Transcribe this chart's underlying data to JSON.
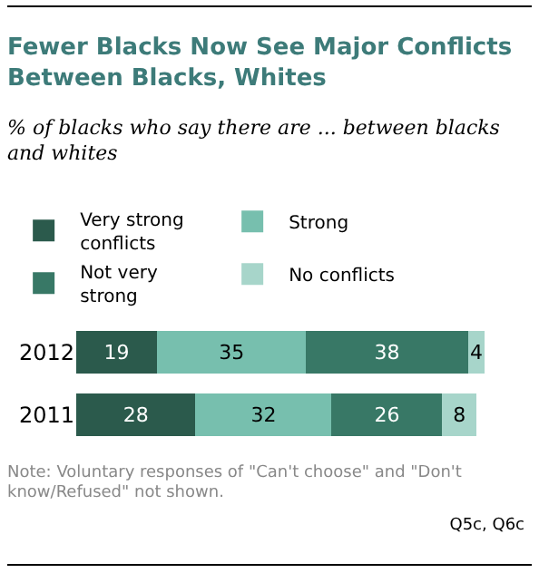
{
  "chart_data": {
    "type": "bar",
    "orientation": "horizontal",
    "stacked": true,
    "title": "Fewer Blacks Now See Major Conflicts Between Blacks, Whites",
    "subtitle": "% of blacks who say there are ... between blacks and whites",
    "categories": [
      "2012",
      "2011"
    ],
    "series": [
      {
        "name": "Very strong conflicts",
        "color": "#2b5a4c",
        "values": [
          19,
          28
        ]
      },
      {
        "name": "Strong",
        "color": "#77bfae",
        "values": [
          35,
          32
        ]
      },
      {
        "name": "Not very strong",
        "color": "#387866",
        "values": [
          38,
          26
        ]
      },
      {
        "name": "No conflicts",
        "color": "#a7d5ca",
        "values": [
          4,
          8
        ]
      }
    ],
    "data_labels": true,
    "legend": "top",
    "grid": false,
    "tick_labels": "y",
    "annotations": [
      "Note: Voluntary responses of \"Can't choose\" and \"Don't know/Refused\" not shown.",
      "Q5c, Q6c"
    ]
  }
}
